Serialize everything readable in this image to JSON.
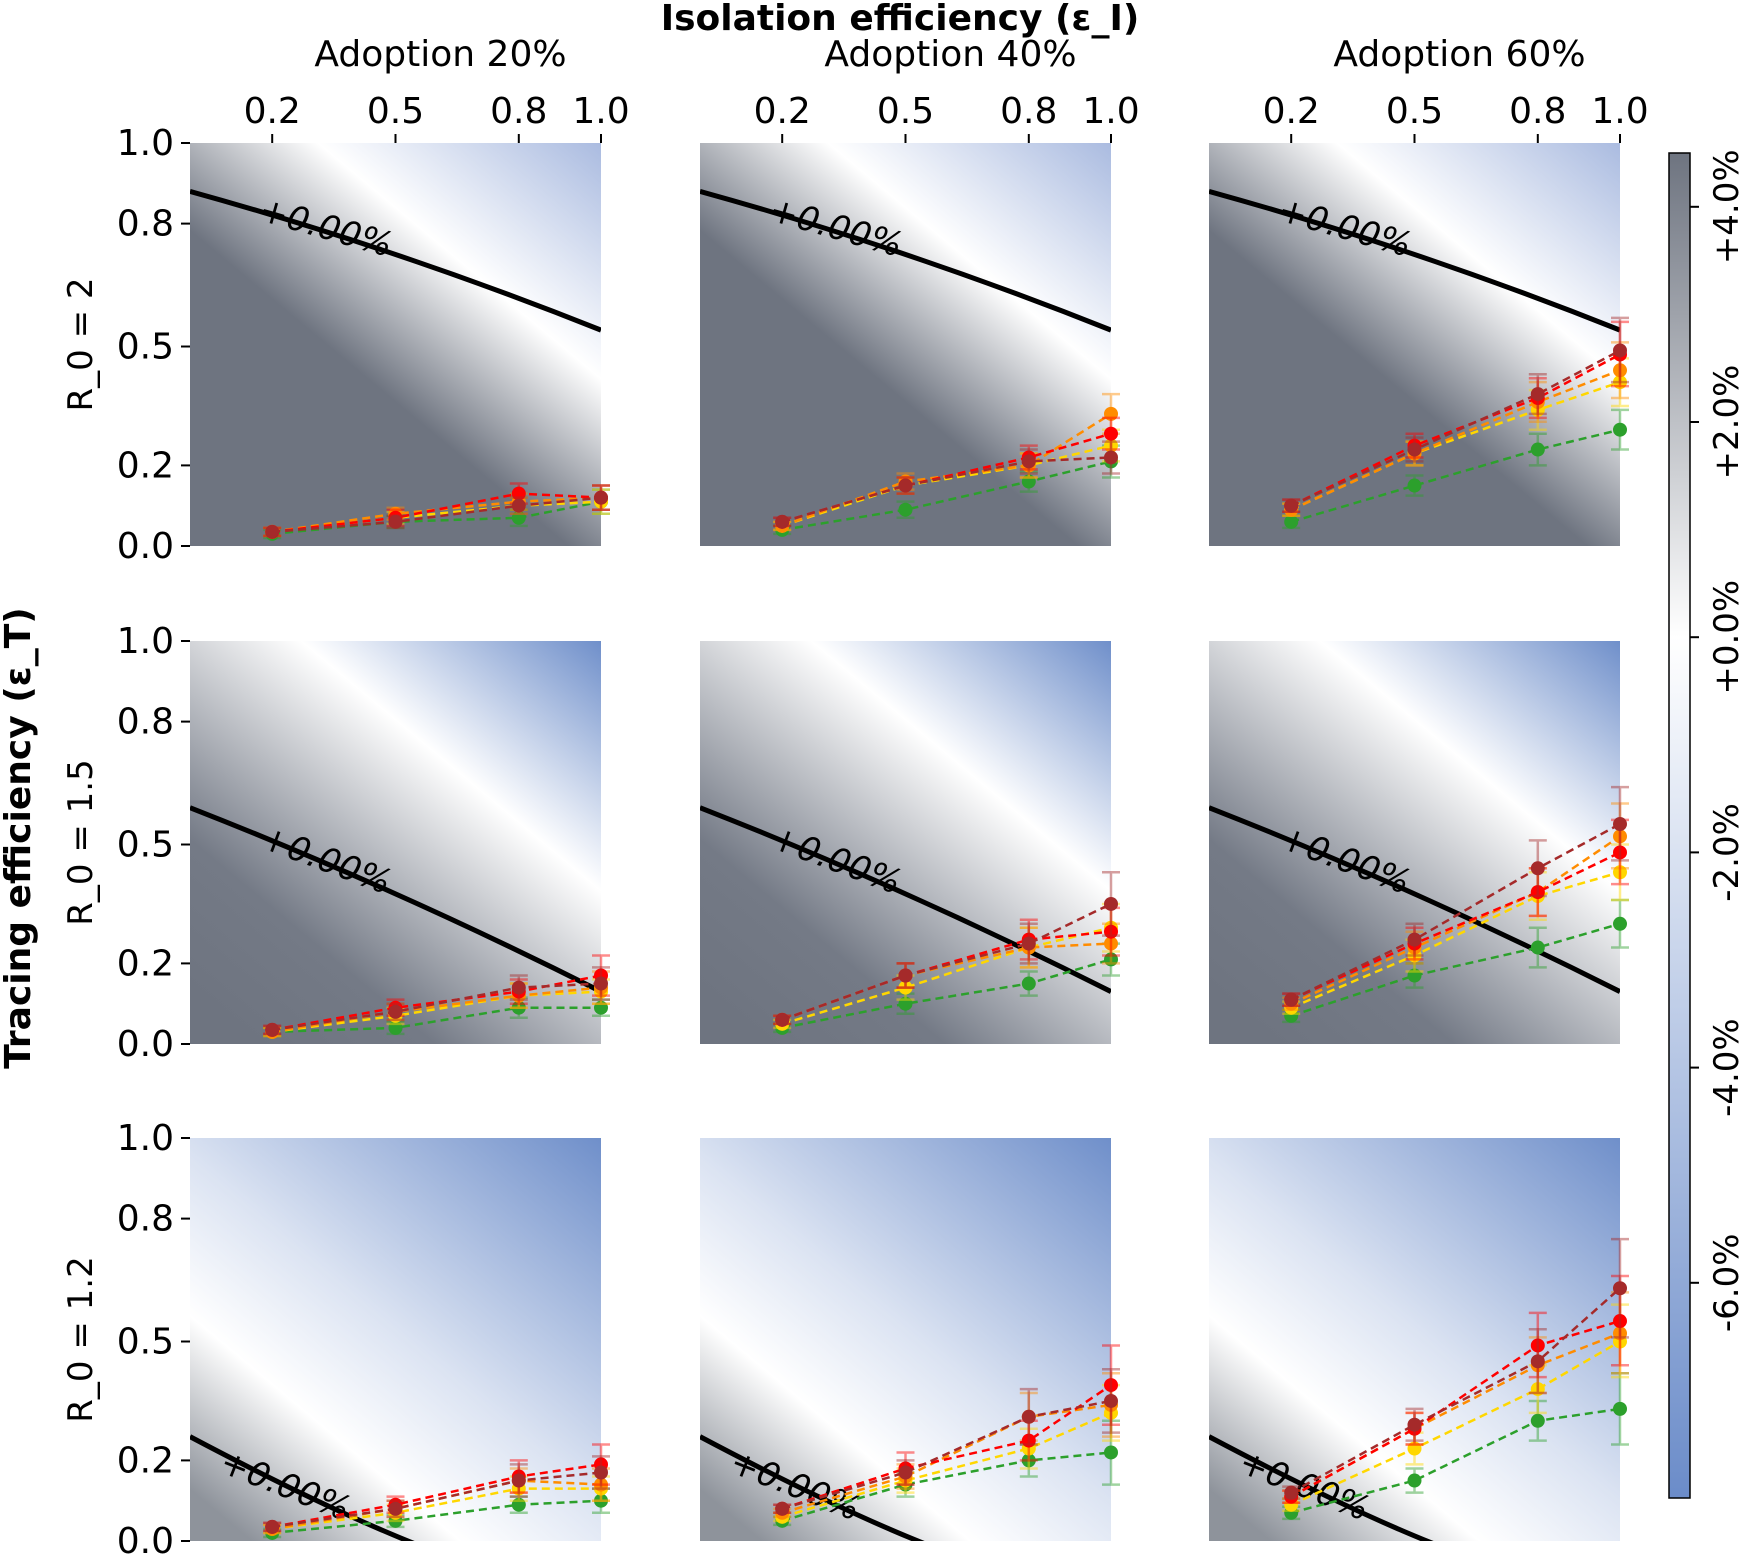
{
  "chart_data": {
    "type": "heatmap",
    "title": "Isolation efficiency (ε_I)",
    "xlabel": "Isolation efficiency (ε_I)",
    "ylabel": "Tracing efficiency (ε_T)",
    "column_titles": [
      "Adoption 20%",
      "Adoption 40%",
      "Adoption 60%"
    ],
    "row_titles": [
      "R_0 = 2",
      "R_0 = 1.5",
      "R_0 = 1.2"
    ],
    "x_ticks": [
      "0.2",
      "0.5",
      "0.8",
      "1.0"
    ],
    "y_ticks": [
      "0.0",
      "0.2",
      "0.5",
      "0.8",
      "1.0"
    ],
    "xlim": [
      0.0,
      1.0
    ],
    "ylim": [
      0.0,
      1.0
    ],
    "contour_label": "+0.00%",
    "contours": [
      [
        [
          0.0,
          0.88
        ],
        [
          0.5,
          0.74
        ],
        [
          1.0,
          0.54
        ]
      ],
      [
        [
          0.0,
          0.88
        ],
        [
          0.5,
          0.74
        ],
        [
          1.0,
          0.54
        ]
      ],
      [
        [
          0.0,
          0.88
        ],
        [
          0.5,
          0.74
        ],
        [
          1.0,
          0.54
        ]
      ],
      [
        [
          0.0,
          0.59
        ],
        [
          0.5,
          0.39
        ],
        [
          1.0,
          0.13
        ]
      ],
      [
        [
          0.0,
          0.59
        ],
        [
          0.5,
          0.39
        ],
        [
          1.0,
          0.13
        ]
      ],
      [
        [
          0.0,
          0.59
        ],
        [
          0.5,
          0.39
        ],
        [
          1.0,
          0.13
        ]
      ],
      [
        [
          0.0,
          0.26
        ],
        [
          0.35,
          0.07
        ],
        [
          0.58,
          -0.02
        ]
      ],
      [
        [
          0.0,
          0.26
        ],
        [
          0.35,
          0.07
        ],
        [
          0.58,
          -0.02
        ]
      ],
      [
        [
          0.0,
          0.26
        ],
        [
          0.35,
          0.07
        ],
        [
          0.58,
          -0.02
        ]
      ]
    ],
    "colorbar": {
      "ticks": [
        "-6.0%",
        "-4.0%",
        "-2.0%",
        "+0.0%",
        "+2.0%",
        "+4.0%"
      ],
      "range": [
        -8.0,
        4.5
      ],
      "colors": {
        "low": "#6b8cc9",
        "mid": "#ffffff",
        "high": "#6e7480"
      }
    },
    "series_colors": [
      "#2ca02c",
      "#ffd700",
      "#ff8c00",
      "#ff0000",
      "#a52a2a"
    ],
    "x_points": [
      0.2,
      0.5,
      0.8,
      1.0
    ],
    "panels": [
      {
        "row": 0,
        "col": 0,
        "series": [
          {
            "color": "#2ca02c",
            "values": [
              0.03,
              0.06,
              0.07,
              0.11
            ],
            "err": [
              0.01,
              0.015,
              0.02,
              0.03
            ]
          },
          {
            "color": "#ffd700",
            "values": [
              0.035,
              0.07,
              0.1,
              0.11
            ],
            "err": [
              0.01,
              0.015,
              0.02,
              0.03
            ]
          },
          {
            "color": "#ff8c00",
            "values": [
              0.035,
              0.08,
              0.11,
              0.12
            ],
            "err": [
              0.01,
              0.015,
              0.02,
              0.03
            ]
          },
          {
            "color": "#ff0000",
            "values": [
              0.035,
              0.07,
              0.13,
              0.12
            ],
            "err": [
              0.01,
              0.02,
              0.025,
              0.03
            ]
          },
          {
            "color": "#a52a2a",
            "values": [
              0.035,
              0.06,
              0.1,
              0.12
            ],
            "err": [
              0.01,
              0.015,
              0.02,
              0.03
            ]
          }
        ]
      },
      {
        "row": 0,
        "col": 1,
        "series": [
          {
            "color": "#2ca02c",
            "values": [
              0.04,
              0.09,
              0.16,
              0.21
            ],
            "err": [
              0.01,
              0.02,
              0.025,
              0.04
            ]
          },
          {
            "color": "#ffd700",
            "values": [
              0.05,
              0.15,
              0.2,
              0.25
            ],
            "err": [
              0.01,
              0.02,
              0.03,
              0.04
            ]
          },
          {
            "color": "#ff8c00",
            "values": [
              0.05,
              0.16,
              0.2,
              0.33
            ],
            "err": [
              0.01,
              0.02,
              0.03,
              0.05
            ]
          },
          {
            "color": "#ff0000",
            "values": [
              0.06,
              0.15,
              0.22,
              0.28
            ],
            "err": [
              0.01,
              0.02,
              0.03,
              0.04
            ]
          },
          {
            "color": "#a52a2a",
            "values": [
              0.06,
              0.15,
              0.21,
              0.22
            ],
            "err": [
              0.01,
              0.02,
              0.03,
              0.04
            ]
          }
        ]
      },
      {
        "row": 0,
        "col": 2,
        "series": [
          {
            "color": "#2ca02c",
            "values": [
              0.06,
              0.15,
              0.24,
              0.29
            ],
            "err": [
              0.015,
              0.025,
              0.04,
              0.05
            ]
          },
          {
            "color": "#ffd700",
            "values": [
              0.09,
              0.23,
              0.34,
              0.41
            ],
            "err": [
              0.015,
              0.03,
              0.05,
              0.06
            ]
          },
          {
            "color": "#ff8c00",
            "values": [
              0.09,
              0.23,
              0.36,
              0.44
            ],
            "err": [
              0.015,
              0.03,
              0.05,
              0.07
            ]
          },
          {
            "color": "#ff0000",
            "values": [
              0.1,
              0.25,
              0.37,
              0.48
            ],
            "err": [
              0.015,
              0.03,
              0.05,
              0.08
            ]
          },
          {
            "color": "#a52a2a",
            "values": [
              0.1,
              0.24,
              0.38,
              0.49
            ],
            "err": [
              0.015,
              0.03,
              0.05,
              0.08
            ]
          }
        ]
      },
      {
        "row": 1,
        "col": 0,
        "series": [
          {
            "color": "#2ca02c",
            "values": [
              0.03,
              0.04,
              0.09,
              0.09
            ],
            "err": [
              0.01,
              0.015,
              0.025,
              0.02
            ]
          },
          {
            "color": "#ffd700",
            "values": [
              0.03,
              0.07,
              0.12,
              0.13
            ],
            "err": [
              0.01,
              0.02,
              0.03,
              0.03
            ]
          },
          {
            "color": "#ff8c00",
            "values": [
              0.03,
              0.08,
              0.12,
              0.14
            ],
            "err": [
              0.01,
              0.02,
              0.03,
              0.04
            ]
          },
          {
            "color": "#ff0000",
            "values": [
              0.035,
              0.09,
              0.13,
              0.17
            ],
            "err": [
              0.01,
              0.02,
              0.03,
              0.05
            ]
          },
          {
            "color": "#a52a2a",
            "values": [
              0.035,
              0.08,
              0.14,
              0.15
            ],
            "err": [
              0.01,
              0.02,
              0.03,
              0.04
            ]
          }
        ]
      },
      {
        "row": 1,
        "col": 1,
        "series": [
          {
            "color": "#2ca02c",
            "values": [
              0.04,
              0.1,
              0.15,
              0.21
            ],
            "err": [
              0.01,
              0.025,
              0.03,
              0.04
            ]
          },
          {
            "color": "#ffd700",
            "values": [
              0.05,
              0.14,
              0.24,
              0.29
            ],
            "err": [
              0.01,
              0.03,
              0.05,
              0.06
            ]
          },
          {
            "color": "#ff8c00",
            "values": [
              0.06,
              0.17,
              0.24,
              0.25
            ],
            "err": [
              0.01,
              0.03,
              0.05,
              0.05
            ]
          },
          {
            "color": "#ff0000",
            "values": [
              0.06,
              0.17,
              0.26,
              0.28
            ],
            "err": [
              0.01,
              0.03,
              0.05,
              0.06
            ]
          },
          {
            "color": "#a52a2a",
            "values": [
              0.06,
              0.17,
              0.25,
              0.35
            ],
            "err": [
              0.01,
              0.03,
              0.05,
              0.08
            ]
          }
        ]
      },
      {
        "row": 1,
        "col": 2,
        "series": [
          {
            "color": "#2ca02c",
            "values": [
              0.07,
              0.17,
              0.24,
              0.3
            ],
            "err": [
              0.015,
              0.03,
              0.05,
              0.06
            ]
          },
          {
            "color": "#ffd700",
            "values": [
              0.09,
              0.22,
              0.37,
              0.43
            ],
            "err": [
              0.015,
              0.04,
              0.06,
              0.07
            ]
          },
          {
            "color": "#ff8c00",
            "values": [
              0.1,
              0.24,
              0.38,
              0.52
            ],
            "err": [
              0.015,
              0.04,
              0.06,
              0.08
            ]
          },
          {
            "color": "#ff0000",
            "values": [
              0.11,
              0.25,
              0.38,
              0.48
            ],
            "err": [
              0.015,
              0.04,
              0.06,
              0.08
            ]
          },
          {
            "color": "#a52a2a",
            "values": [
              0.11,
              0.26,
              0.44,
              0.55
            ],
            "err": [
              0.015,
              0.04,
              0.07,
              0.09
            ]
          }
        ]
      },
      {
        "row": 2,
        "col": 0,
        "series": [
          {
            "color": "#2ca02c",
            "values": [
              0.02,
              0.05,
              0.09,
              0.1
            ],
            "err": [
              0.01,
              0.015,
              0.02,
              0.03
            ]
          },
          {
            "color": "#ffd700",
            "values": [
              0.03,
              0.07,
              0.13,
              0.13
            ],
            "err": [
              0.01,
              0.02,
              0.03,
              0.03
            ]
          },
          {
            "color": "#ff8c00",
            "values": [
              0.03,
              0.08,
              0.15,
              0.14
            ],
            "err": [
              0.01,
              0.02,
              0.03,
              0.04
            ]
          },
          {
            "color": "#ff0000",
            "values": [
              0.035,
              0.09,
              0.16,
              0.19
            ],
            "err": [
              0.01,
              0.02,
              0.04,
              0.05
            ]
          },
          {
            "color": "#a52a2a",
            "values": [
              0.035,
              0.08,
              0.15,
              0.17
            ],
            "err": [
              0.01,
              0.02,
              0.04,
              0.04
            ]
          }
        ]
      },
      {
        "row": 2,
        "col": 1,
        "series": [
          {
            "color": "#2ca02c",
            "values": [
              0.05,
              0.14,
              0.2,
              0.22
            ],
            "err": [
              0.01,
              0.03,
              0.04,
              0.08
            ]
          },
          {
            "color": "#ffd700",
            "values": [
              0.06,
              0.15,
              0.23,
              0.32
            ],
            "err": [
              0.01,
              0.03,
              0.05,
              0.07
            ]
          },
          {
            "color": "#ff8c00",
            "values": [
              0.07,
              0.16,
              0.31,
              0.34
            ],
            "err": [
              0.01,
              0.03,
              0.06,
              0.08
            ]
          },
          {
            "color": "#ff0000",
            "values": [
              0.08,
              0.18,
              0.25,
              0.39
            ],
            "err": [
              0.01,
              0.04,
              0.05,
              0.1
            ]
          },
          {
            "color": "#a52a2a",
            "values": [
              0.08,
              0.17,
              0.31,
              0.35
            ],
            "err": [
              0.01,
              0.03,
              0.07,
              0.08
            ]
          }
        ]
      },
      {
        "row": 2,
        "col": 2,
        "series": [
          {
            "color": "#2ca02c",
            "values": [
              0.07,
              0.15,
              0.3,
              0.33
            ],
            "err": [
              0.015,
              0.03,
              0.05,
              0.09
            ]
          },
          {
            "color": "#ffd700",
            "values": [
              0.09,
              0.23,
              0.38,
              0.5
            ],
            "err": [
              0.015,
              0.04,
              0.06,
              0.09
            ]
          },
          {
            "color": "#ff8c00",
            "values": [
              0.11,
              0.28,
              0.44,
              0.52
            ],
            "err": [
              0.015,
              0.04,
              0.07,
              0.1
            ]
          },
          {
            "color": "#ff0000",
            "values": [
              0.11,
              0.28,
              0.49,
              0.55
            ],
            "err": [
              0.015,
              0.04,
              0.08,
              0.11
            ]
          },
          {
            "color": "#a52a2a",
            "values": [
              0.12,
              0.29,
              0.45,
              0.63
            ],
            "err": [
              0.015,
              0.04,
              0.08,
              0.12
            ]
          }
        ]
      }
    ]
  }
}
